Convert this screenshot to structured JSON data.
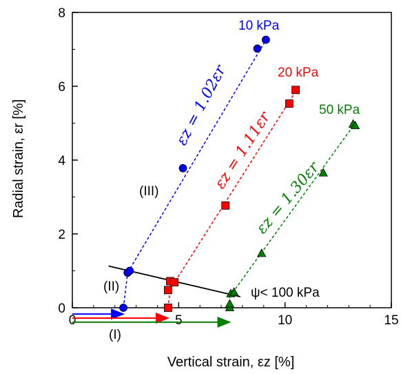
{
  "chart_data": {
    "type": "scatter",
    "xlabel": "Vertical strain, εz [%]",
    "ylabel": "Radial strain, εr [%]",
    "xlim": [
      0,
      15
    ],
    "ylim": [
      0,
      8
    ],
    "xticks": [
      "0",
      "5",
      "10",
      "15"
    ],
    "yticks": [
      "0",
      "2",
      "4",
      "6",
      "8"
    ],
    "grid": false,
    "series": [
      {
        "name": "10 kPa",
        "color": "#0000ff",
        "marker": "circle",
        "points": [
          [
            2.4,
            0.0
          ],
          [
            2.6,
            0.95
          ],
          [
            2.7,
            1.0
          ],
          [
            5.2,
            3.78
          ],
          [
            8.7,
            7.02
          ],
          [
            9.1,
            7.26
          ]
        ],
        "fit_label": "εz = 1.02εr",
        "fit_line": [
          [
            2.6,
            0.95
          ],
          [
            9.2,
            7.35
          ]
        ]
      },
      {
        "name": "20 kPa",
        "color": "#ff0000",
        "marker": "square",
        "points": [
          [
            4.5,
            0.0
          ],
          [
            4.5,
            0.48
          ],
          [
            4.6,
            0.72
          ],
          [
            4.8,
            0.69
          ],
          [
            7.2,
            2.77
          ],
          [
            10.2,
            5.53
          ],
          [
            10.5,
            5.9
          ]
        ],
        "fit_label": "εz = 1.11εr",
        "fit_line": [
          [
            4.6,
            0.5
          ],
          [
            10.6,
            5.95
          ]
        ]
      },
      {
        "name": "50 kPa",
        "color": "#008000",
        "marker": "triangle",
        "points": [
          [
            7.4,
            0.0
          ],
          [
            7.4,
            0.1
          ],
          [
            7.45,
            0.38
          ],
          [
            7.6,
            0.42
          ],
          [
            8.9,
            1.47
          ],
          [
            11.8,
            3.65
          ],
          [
            13.2,
            4.97
          ],
          [
            13.3,
            4.93
          ]
        ],
        "fit_label": "εz = 1.30εr",
        "fit_line": [
          [
            7.4,
            0.3
          ],
          [
            13.3,
            5.0
          ]
        ]
      }
    ],
    "yield_line": {
      "label": "ψ< 100 kPa",
      "color": "#000000",
      "points": [
        [
          1.7,
          1.13
        ],
        [
          7.9,
          0.3
        ]
      ]
    },
    "region_labels": [
      "(I)",
      "(II)",
      "(III)"
    ],
    "arrows": [
      {
        "color": "#0000ff",
        "y": -0.17,
        "x_start": 0,
        "x_end": 2.4
      },
      {
        "color": "#ff0000",
        "y": -0.28,
        "x_start": 0,
        "x_end": 4.5
      },
      {
        "color": "#008000",
        "y": -0.39,
        "x_start": 0,
        "x_end": 7.4
      }
    ]
  }
}
